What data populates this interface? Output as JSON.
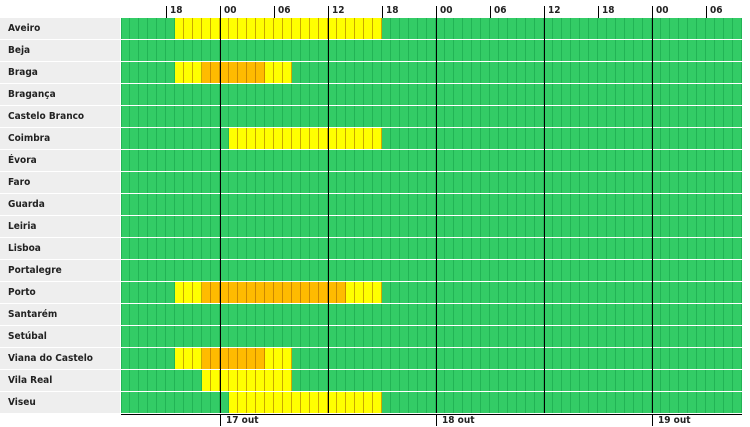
{
  "hour_labels": [
    "18",
    "00",
    "06",
    "12",
    "18",
    "00",
    "06",
    "12",
    "18",
    "00",
    "06"
  ],
  "date_labels": [
    "17 out",
    "18 out",
    "19 out"
  ],
  "colors": {
    "green": "#33cc66",
    "yellow": "#ffff00",
    "orange": "#ffbb00",
    "green_border": "#22b455",
    "yellow_border": "#c9a800",
    "orange_border": "#cc8800"
  },
  "rows": [
    {
      "name": "Aveiro",
      "y": [
        6,
        29
      ],
      "o": []
    },
    {
      "name": "Beja",
      "y": [],
      "o": []
    },
    {
      "name": "Braga",
      "y": [
        6,
        19
      ],
      "o": [
        9,
        16
      ]
    },
    {
      "name": "Bragança",
      "y": [],
      "o": []
    },
    {
      "name": "Castelo Branco",
      "y": [],
      "o": []
    },
    {
      "name": "Coimbra",
      "y": [
        12,
        29
      ],
      "o": []
    },
    {
      "name": "Évora",
      "y": [],
      "o": []
    },
    {
      "name": "Faro",
      "y": [],
      "o": []
    },
    {
      "name": "Guarda",
      "y": [],
      "o": []
    },
    {
      "name": "Leiria",
      "y": [],
      "o": []
    },
    {
      "name": "Lisboa",
      "y": [],
      "o": []
    },
    {
      "name": "Portalegre",
      "y": [],
      "o": []
    },
    {
      "name": "Porto",
      "y": [
        6,
        29
      ],
      "o": [
        9,
        25
      ]
    },
    {
      "name": "Santarém",
      "y": [],
      "o": []
    },
    {
      "name": "Setúbal",
      "y": [],
      "o": []
    },
    {
      "name": "Viana do Castelo",
      "y": [
        6,
        19
      ],
      "o": [
        9,
        16
      ]
    },
    {
      "name": "Vila Real",
      "y": [
        9,
        19
      ],
      "o": []
    },
    {
      "name": "Viseu",
      "y": [
        12,
        29
      ],
      "o": []
    }
  ]
}
